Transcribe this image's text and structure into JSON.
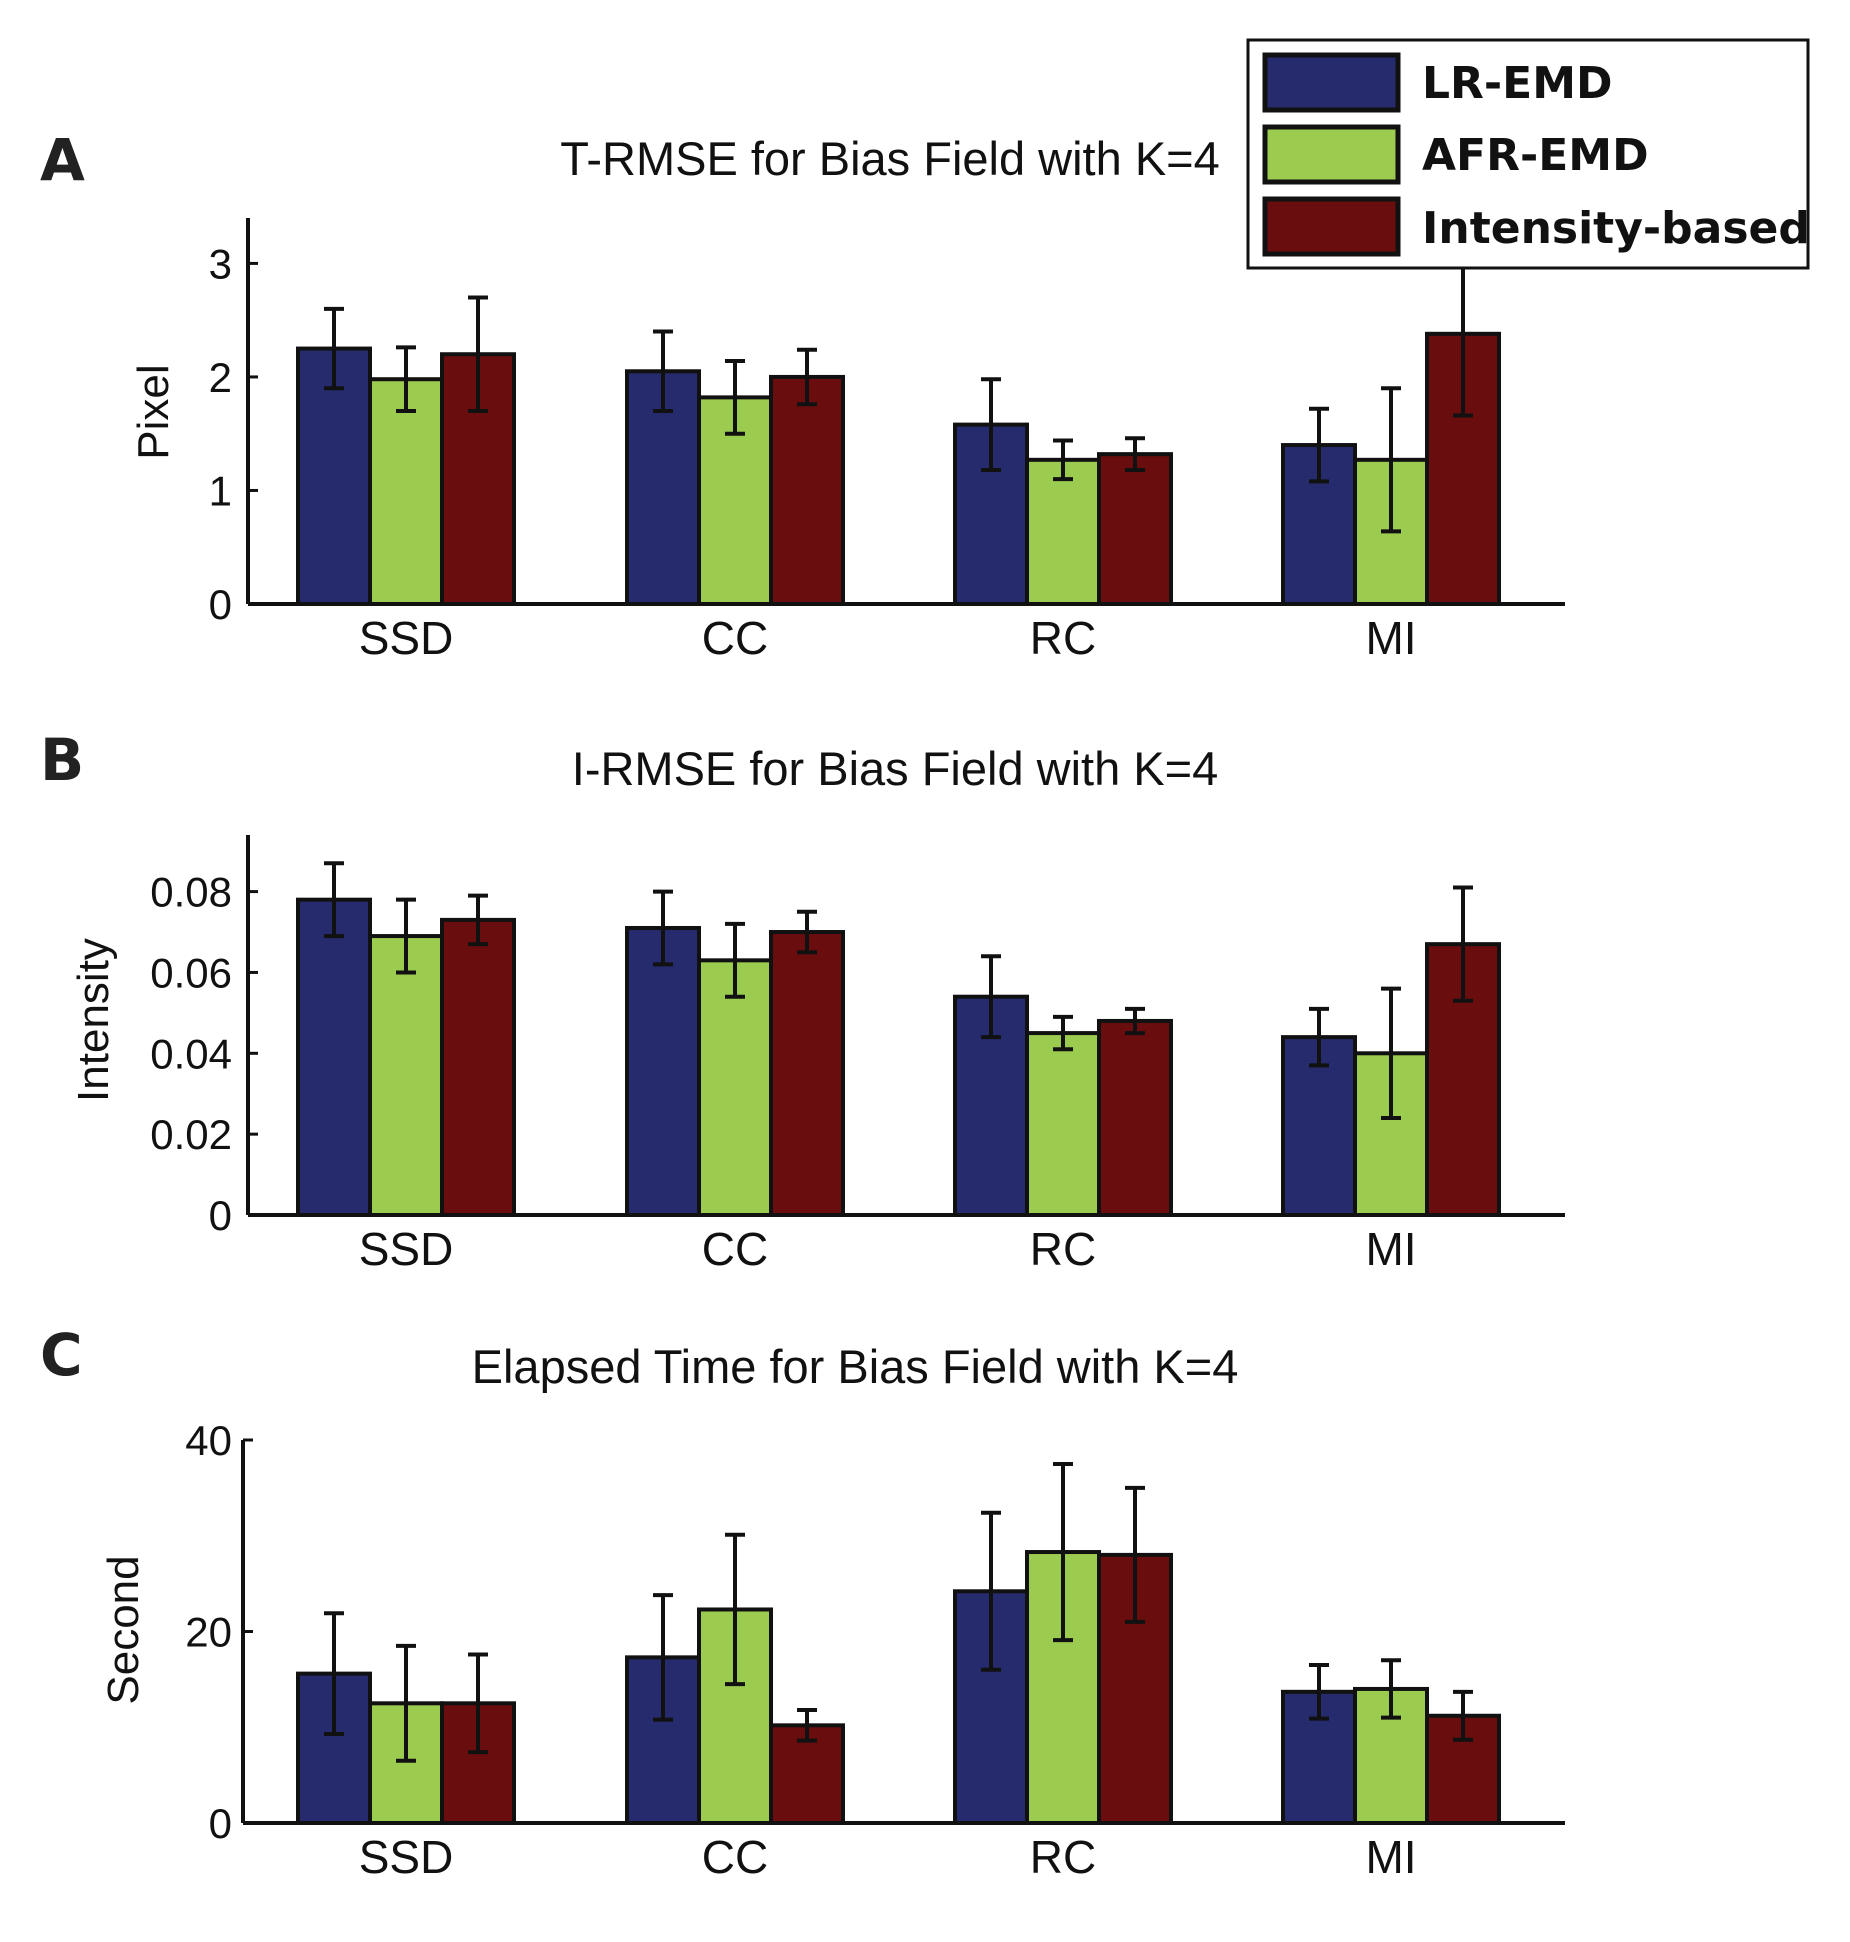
{
  "colors": {
    "lr_emd": "#262b6e",
    "afr_emd": "#9ccc4f",
    "intensity_based": "#6a0d0e",
    "axis": "#111111",
    "error_bar": "#111111"
  },
  "legend": {
    "items": [
      {
        "label": "LR-EMD",
        "color": "#262b6e"
      },
      {
        "label": "AFR-EMD",
        "color": "#9ccc4f"
      },
      {
        "label": "Intensity-based",
        "color": "#6a0d0e"
      }
    ],
    "position": "top-right"
  },
  "chart_data": [
    {
      "panel": "A",
      "type": "bar",
      "title": "T-RMSE for Bias Field with K=4",
      "xlabel": "",
      "ylabel": "Pixel",
      "categories": [
        "SSD",
        "CC",
        "RC",
        "MI"
      ],
      "ylim": [
        0,
        3.4
      ],
      "yticks": [
        0,
        1,
        2,
        3
      ],
      "ytick_labels": [
        "0",
        "1",
        "2",
        "3"
      ],
      "series": [
        {
          "name": "LR-EMD",
          "values": [
            2.25,
            2.05,
            1.58,
            1.4
          ],
          "errors": [
            0.35,
            0.35,
            0.4,
            0.32
          ]
        },
        {
          "name": "AFR-EMD",
          "values": [
            1.98,
            1.82,
            1.27,
            1.27
          ],
          "errors": [
            0.28,
            0.32,
            0.17,
            0.63
          ]
        },
        {
          "name": "Intensity-based",
          "values": [
            2.2,
            2.0,
            1.32,
            2.38
          ],
          "errors": [
            0.5,
            0.24,
            0.14,
            0.72
          ]
        }
      ]
    },
    {
      "panel": "B",
      "type": "bar",
      "title": "I-RMSE for Bias Field with K=4",
      "xlabel": "",
      "ylabel": "Intensity",
      "categories": [
        "SSD",
        "CC",
        "RC",
        "MI"
      ],
      "ylim": [
        0,
        0.094
      ],
      "yticks": [
        0,
        0.02,
        0.04,
        0.06,
        0.08
      ],
      "ytick_labels": [
        "0",
        "0.02",
        "0.04",
        "0.06",
        "0.08"
      ],
      "series": [
        {
          "name": "LR-EMD",
          "values": [
            0.078,
            0.071,
            0.054,
            0.044
          ],
          "errors": [
            0.009,
            0.009,
            0.01,
            0.007
          ]
        },
        {
          "name": "AFR-EMD",
          "values": [
            0.069,
            0.063,
            0.045,
            0.04
          ],
          "errors": [
            0.009,
            0.009,
            0.004,
            0.016
          ]
        },
        {
          "name": "Intensity-based",
          "values": [
            0.073,
            0.07,
            0.048,
            0.067
          ],
          "errors": [
            0.006,
            0.005,
            0.003,
            0.014
          ]
        }
      ]
    },
    {
      "panel": "C",
      "type": "bar",
      "title": "Elapsed Time for Bias Field with K=4",
      "xlabel": "",
      "ylabel": "Second",
      "categories": [
        "SSD",
        "CC",
        "RC",
        "MI"
      ],
      "ylim": [
        0,
        40
      ],
      "yticks": [
        0,
        20,
        40
      ],
      "ytick_labels": [
        "0",
        "20",
        "40"
      ],
      "series": [
        {
          "name": "LR-EMD",
          "values": [
            15.6,
            17.3,
            24.2,
            13.7
          ],
          "errors": [
            6.3,
            6.5,
            8.2,
            2.8
          ]
        },
        {
          "name": "AFR-EMD",
          "values": [
            12.5,
            22.3,
            28.3,
            14.0
          ],
          "errors": [
            6.0,
            7.8,
            9.2,
            3.0
          ]
        },
        {
          "name": "Intensity-based",
          "values": [
            12.5,
            10.2,
            28.0,
            11.2
          ],
          "errors": [
            5.1,
            1.6,
            7.0,
            2.5
          ]
        }
      ]
    }
  ]
}
